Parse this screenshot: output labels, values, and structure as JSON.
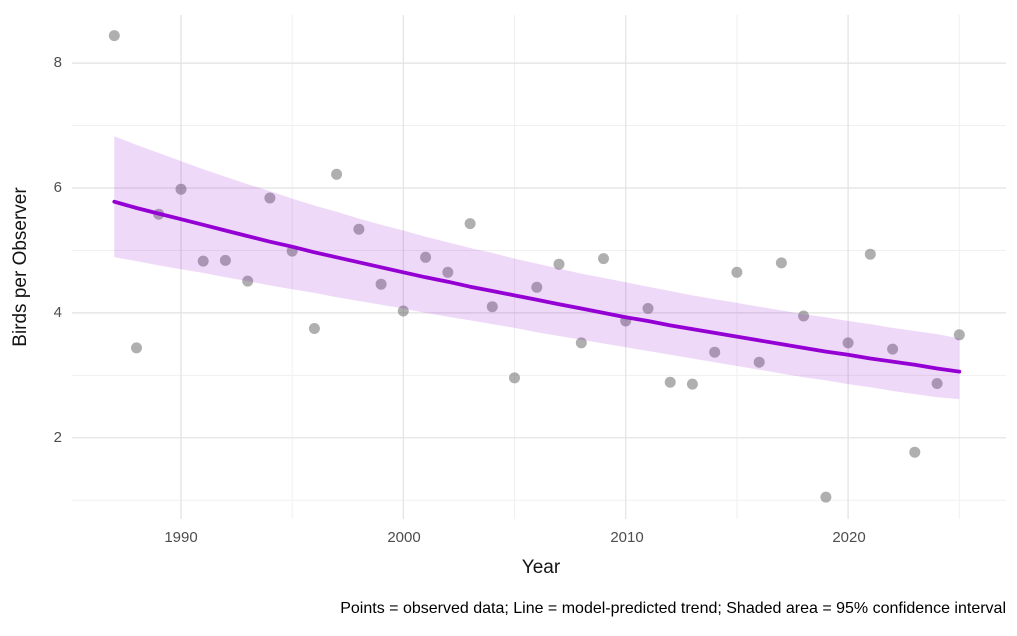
{
  "figure": {
    "caption": "Points = observed data; Line = model-predicted trend; Shaded area = 95% confidence interval"
  },
  "chart_data": {
    "type": "scatter",
    "title": "",
    "xlabel": "Year",
    "ylabel": "Birds per Observer",
    "xlim": [
      1985.1,
      2027.1
    ],
    "ylim": [
      0.7,
      8.77
    ],
    "grid": true,
    "legend_position": "none",
    "x_major_ticks": [
      1990,
      2000,
      2010,
      2020
    ],
    "x_tick_labels": [
      "1990",
      "2000",
      "2010",
      "2020"
    ],
    "x_minor_gridlines": [
      1995,
      2005,
      2015,
      2025
    ],
    "y_major_ticks": [
      8,
      6,
      4,
      2
    ],
    "y_tick_labels": [
      "8",
      "6",
      "4",
      "2"
    ],
    "y_minor_gridlines": [
      1,
      3,
      5,
      7
    ],
    "years": [
      1987,
      1988,
      1989,
      1990,
      1991,
      1992,
      1993,
      1994,
      1995,
      1996,
      1997,
      1998,
      1999,
      2000,
      2001,
      2002,
      2003,
      2004,
      2005,
      2006,
      2007,
      2008,
      2009,
      2010,
      2011,
      2012,
      2013,
      2014,
      2015,
      2016,
      2017,
      2018,
      2019,
      2020,
      2021,
      2022,
      2023,
      2024,
      2025
    ],
    "series": [
      {
        "name": "observed",
        "style": "points",
        "values": [
          8.44,
          3.44,
          5.58,
          5.98,
          4.83,
          4.84,
          4.51,
          5.84,
          4.99,
          3.75,
          6.22,
          5.34,
          4.46,
          4.03,
          4.89,
          4.65,
          5.43,
          4.1,
          2.96,
          4.41,
          4.78,
          3.52,
          4.87,
          3.87,
          4.07,
          2.89,
          2.86,
          3.37,
          4.65,
          3.21,
          4.8,
          3.95,
          1.05,
          3.52,
          4.94,
          3.42,
          1.77,
          2.87,
          3.65
        ]
      },
      {
        "name": "model_predicted_trend",
        "style": "line",
        "values": [
          5.78,
          5.68,
          5.59,
          5.5,
          5.41,
          5.32,
          5.23,
          5.14,
          5.06,
          4.97,
          4.89,
          4.81,
          4.73,
          4.65,
          4.57,
          4.5,
          4.42,
          4.35,
          4.28,
          4.21,
          4.14,
          4.07,
          4.0,
          3.93,
          3.87,
          3.8,
          3.74,
          3.68,
          3.62,
          3.56,
          3.5,
          3.44,
          3.38,
          3.33,
          3.27,
          3.22,
          3.17,
          3.11,
          3.06
        ]
      },
      {
        "name": "ci_95_lower",
        "style": "band-lower",
        "values": [
          4.89,
          4.83,
          4.76,
          4.7,
          4.64,
          4.57,
          4.51,
          4.44,
          4.38,
          4.32,
          4.25,
          4.19,
          4.13,
          4.07,
          4.0,
          3.94,
          3.88,
          3.82,
          3.76,
          3.69,
          3.63,
          3.57,
          3.51,
          3.45,
          3.39,
          3.33,
          3.27,
          3.21,
          3.15,
          3.09,
          3.03,
          2.97,
          2.92,
          2.86,
          2.81,
          2.75,
          2.7,
          2.65,
          2.62
        ]
      },
      {
        "name": "ci_95_upper",
        "style": "band-upper",
        "values": [
          6.83,
          6.69,
          6.56,
          6.43,
          6.3,
          6.18,
          6.06,
          5.95,
          5.83,
          5.72,
          5.62,
          5.51,
          5.41,
          5.32,
          5.22,
          5.13,
          5.04,
          4.96,
          4.87,
          4.79,
          4.71,
          4.63,
          4.56,
          4.49,
          4.42,
          4.35,
          4.28,
          4.22,
          4.16,
          4.1,
          4.04,
          3.98,
          3.93,
          3.87,
          3.82,
          3.76,
          3.71,
          3.66,
          3.59
        ]
      }
    ],
    "colors": {
      "point_fill": "#666666",
      "point_opacity": 0.52,
      "trend_line": "#9400D3",
      "ci_fill": "#9400D3",
      "ci_opacity": 0.15,
      "grid_major": "#E2E2E2",
      "grid_minor": "#F0F0F0",
      "tick_text": "#4d4d4d",
      "axis_title_text": "#141414",
      "caption_text": "#000000",
      "background": "#FFFFFF"
    }
  }
}
